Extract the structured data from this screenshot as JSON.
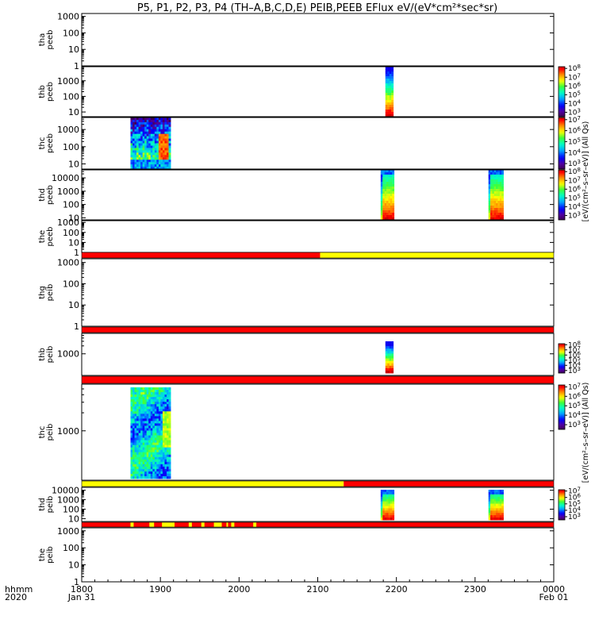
{
  "title": "P5, P1, P2, P3, P4 (TH–A,B,C,D,E) PEIB,PEEB EFlux eV/(eV*cm²*sec*sr)",
  "chart_data": {
    "type": "heatmap",
    "x_axis": {
      "ticks": [
        "1800",
        "1900",
        "2000",
        "2100",
        "2200",
        "2300",
        "0000"
      ],
      "range": [
        "2020-01-31 18:00",
        "2020-02-01 00:00"
      ],
      "row_label_1": "hhmm",
      "row_label_2": "2020",
      "start_date_label": "Jan 31",
      "end_date_label": "Feb 01"
    },
    "colorbar_labels": {
      "peeb": "[eV/(cm²–s–sr–eV)] (All Qs)",
      "peib": "[eV/(cm²–s–sr–eV)] (All Qs)"
    },
    "colorbars": [
      {
        "id": "thb-peeb",
        "exponents": [
          "3",
          "4",
          "5",
          "6",
          "7",
          "8"
        ],
        "range_log10": [
          2.5,
          8.2
        ]
      },
      {
        "id": "thc-peeb",
        "exponents": [
          "3",
          "4",
          "5",
          "6",
          "7"
        ],
        "range_log10": [
          2.5,
          7.2
        ]
      },
      {
        "id": "thd-peeb",
        "exponents": [
          "3",
          "4",
          "5",
          "6",
          "7",
          "8"
        ],
        "range_log10": [
          2.5,
          8.2
        ]
      },
      {
        "id": "thb-peib",
        "exponents": [
          "3",
          "4",
          "5",
          "6",
          "7",
          "8"
        ],
        "range_log10": [
          2.5,
          8.2
        ]
      },
      {
        "id": "thc-peib",
        "exponents": [
          "3",
          "4",
          "5",
          "6",
          "7"
        ],
        "range_log10": [
          2.5,
          7.2
        ]
      },
      {
        "id": "thd-peib",
        "exponents": [
          "3",
          "4",
          "5",
          "6",
          "7"
        ],
        "range_log10": [
          2.5,
          7.2
        ]
      }
    ],
    "panels": [
      {
        "id": "tha-peeb",
        "label1": "tha",
        "label2": "peeb",
        "ylim": [
          1,
          1500
        ],
        "ticks": [
          {
            "v": 1,
            "t": "1"
          },
          {
            "v": 10,
            "t": "10"
          },
          {
            "v": 100,
            "t": "100"
          },
          {
            "v": 1000,
            "t": "1000"
          }
        ],
        "blocks": []
      },
      {
        "id": "thb-peeb",
        "label1": "thb",
        "label2": "peeb",
        "ylim": [
          5,
          8000
        ],
        "ticks": [
          {
            "v": 10,
            "t": "10"
          },
          {
            "v": 100,
            "t": "100"
          },
          {
            "v": 1000,
            "t": "1000"
          }
        ],
        "blocks": [
          {
            "t0": "21:86",
            "t1": "21:96",
            "style": "ion_narrow"
          }
        ]
      },
      {
        "id": "thc-peeb",
        "label1": "thc",
        "label2": "peeb",
        "ylim": [
          5,
          5000
        ],
        "ticks": [
          {
            "v": 10,
            "t": "10"
          },
          {
            "v": 100,
            "t": "100"
          },
          {
            "v": 1000,
            "t": "1000"
          }
        ],
        "blocks": [
          {
            "t0": "18:62",
            "t1": "19:13",
            "style": "electron_mixed"
          }
        ]
      },
      {
        "id": "thd-peeb",
        "label1": "thd",
        "label2": "peeb",
        "ylim": [
          7,
          40000
        ],
        "ticks": [
          {
            "v": 10,
            "t": "10"
          },
          {
            "v": 100,
            "t": "100"
          },
          {
            "v": 1000,
            "t": "1000"
          },
          {
            "v": 10000,
            "t": "10000"
          }
        ],
        "blocks": [
          {
            "t0": "21:80",
            "t1": "21:97",
            "style": "electron_hot"
          },
          {
            "t0": "23:17",
            "t1": "23:36",
            "style": "electron_hot"
          }
        ]
      },
      {
        "id": "the-peeb",
        "label1": "the",
        "label2": "peeb",
        "ylim": [
          1,
          1500
        ],
        "ticks": [
          {
            "v": 1,
            "t": "1"
          },
          {
            "v": 10,
            "t": "10"
          },
          {
            "v": 100,
            "t": "100"
          },
          {
            "v": 1000,
            "t": "1000"
          }
        ],
        "blocks": []
      },
      {
        "id": "thg-peib",
        "label1": "thg",
        "label2": "peib",
        "ylim": [
          1,
          1500
        ],
        "ticks": [
          {
            "v": 1,
            "t": "1"
          },
          {
            "v": 10,
            "t": "10"
          },
          {
            "v": 100,
            "t": "100"
          },
          {
            "v": 1000,
            "t": "1000"
          }
        ],
        "blocks": []
      },
      {
        "id": "thb-peib",
        "label1": "thb",
        "label2": "peib",
        "ylim": [
          150,
          6000
        ],
        "ticks": [
          {
            "v": 1000,
            "t": "1000"
          }
        ],
        "blocks": [
          {
            "t0": "21:86",
            "t1": "21:96",
            "style": "ion_narrow"
          }
        ]
      },
      {
        "id": "thc-peib",
        "label1": "thc",
        "label2": "peib",
        "ylim": [
          150,
          6000
        ],
        "ticks": [
          {
            "v": 1000,
            "t": "1000"
          }
        ],
        "blocks": [
          {
            "t0": "18:62",
            "t1": "19:13",
            "style": "ion_blue"
          }
        ]
      },
      {
        "id": "thd-peib",
        "label1": "thd",
        "label2": "peib",
        "ylim": [
          5,
          20000
        ],
        "ticks": [
          {
            "v": 10,
            "t": "10"
          },
          {
            "v": 100,
            "t": "100"
          },
          {
            "v": 1000,
            "t": "1000"
          },
          {
            "v": 10000,
            "t": "10000"
          }
        ],
        "blocks": [
          {
            "t0": "21:80",
            "t1": "21:97",
            "style": "electron_hot"
          },
          {
            "t0": "23:17",
            "t1": "23:36",
            "style": "electron_hot"
          }
        ]
      },
      {
        "id": "the-peib",
        "label1": "the",
        "label2": "peib",
        "ylim": [
          1,
          1500
        ],
        "ticks": [
          {
            "v": 1,
            "t": "1"
          },
          {
            "v": 10,
            "t": "10"
          },
          {
            "v": 100,
            "t": "100"
          },
          {
            "v": 1000,
            "t": "1000"
          }
        ],
        "blocks": []
      }
    ],
    "mode_bars": [
      {
        "id": "bar-1",
        "segments": [
          {
            "t0": "18:00",
            "t1": "21:03",
            "color": "#ff0000"
          },
          {
            "t0": "21:03",
            "t1": "24:00",
            "color": "#ffff00"
          }
        ]
      },
      {
        "id": "bar-2",
        "segments": [
          {
            "t0": "18:00",
            "t1": "24:00",
            "color": "#ff0000"
          }
        ]
      },
      {
        "id": "bar-3",
        "segments": [
          {
            "t0": "18:00",
            "t1": "24:00",
            "color": "#ff0000"
          }
        ]
      },
      {
        "id": "bar-4",
        "segments": [
          {
            "t0": "18:00",
            "t1": "21:33",
            "color": "#ffff00"
          },
          {
            "t0": "21:33",
            "t1": "24:00",
            "color": "#ff0000"
          }
        ]
      },
      {
        "id": "bar-5",
        "segments": [
          {
            "t0": "18:00",
            "t1": "24:00",
            "color": "#ff0000"
          },
          {
            "t0": "18:62",
            "t1": "18:66",
            "color": "#ffff00"
          },
          {
            "t0": "18:86",
            "t1": "18:92",
            "color": "#ffff00"
          },
          {
            "t0": "19:02",
            "t1": "19:18",
            "color": "#ffff00"
          },
          {
            "t0": "19:36",
            "t1": "19:40",
            "color": "#ffff00"
          },
          {
            "t0": "19:52",
            "t1": "19:56",
            "color": "#ffff00"
          },
          {
            "t0": "19:68",
            "t1": "19:78",
            "color": "#ffff00"
          },
          {
            "t0": "19:84",
            "t1": "19:86",
            "color": "#ffff00"
          },
          {
            "t0": "19:90",
            "t1": "19:94",
            "color": "#ffff00"
          },
          {
            "t0": "20:18",
            "t1": "20:22",
            "color": "#ffff00"
          }
        ]
      }
    ]
  }
}
